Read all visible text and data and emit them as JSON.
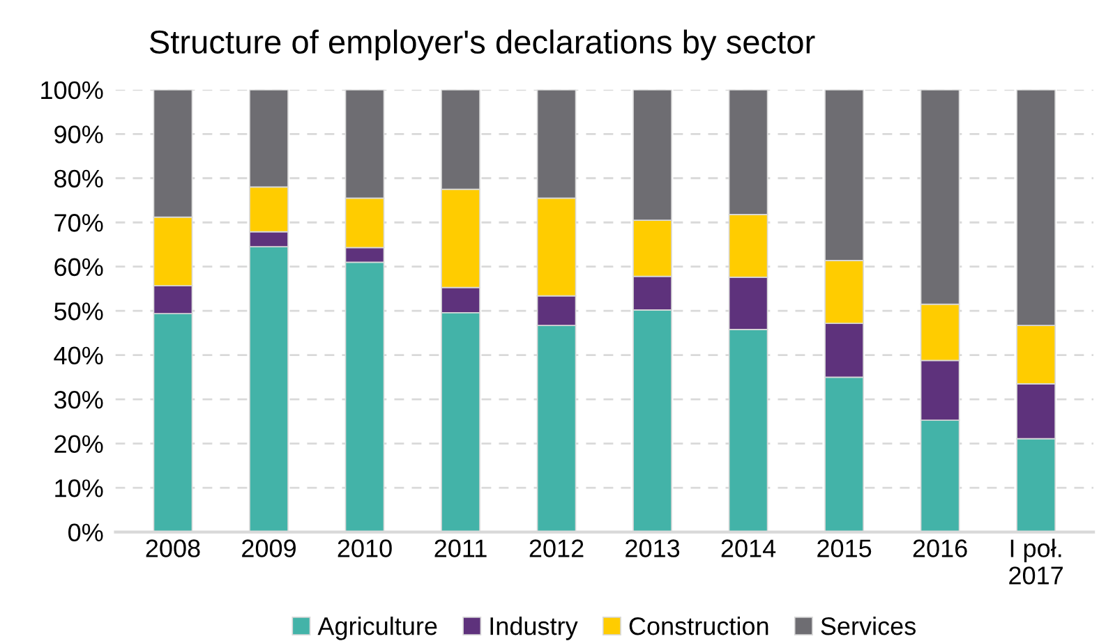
{
  "chart_data": {
    "type": "bar",
    "title": "Structure of employer's declarations by sector",
    "stacked": true,
    "categories": [
      "2008",
      "2009",
      "2010",
      "2011",
      "2012",
      "2013",
      "2014",
      "2015",
      "2016",
      "I poł.\n2017"
    ],
    "series": [
      {
        "name": "Agriculture",
        "color": "#43b3a8",
        "values": [
          49.4,
          64.5,
          61.0,
          49.6,
          46.7,
          50.2,
          45.8,
          35.0,
          25.3,
          21.1
        ]
      },
      {
        "name": "Industry",
        "color": "#5e327c",
        "values": [
          6.3,
          3.4,
          3.3,
          5.7,
          6.7,
          7.6,
          11.8,
          12.2,
          13.5,
          12.4
        ]
      },
      {
        "name": "Construction",
        "color": "#ffcc00",
        "values": [
          15.5,
          10.1,
          11.2,
          22.2,
          22.1,
          12.7,
          14.2,
          14.2,
          12.7,
          13.2
        ]
      },
      {
        "name": "Services",
        "color": "#6e6d72",
        "values": [
          28.8,
          22.0,
          24.5,
          22.5,
          24.5,
          29.5,
          28.2,
          38.6,
          48.5,
          53.3
        ]
      }
    ],
    "ylim": [
      0,
      100
    ],
    "yticks": [
      {
        "value": 0,
        "label": "0%"
      },
      {
        "value": 10,
        "label": "10%"
      },
      {
        "value": 20,
        "label": "20%"
      },
      {
        "value": 30,
        "label": "30%"
      },
      {
        "value": 40,
        "label": "40%"
      },
      {
        "value": 50,
        "label": "50%"
      },
      {
        "value": 60,
        "label": "60%"
      },
      {
        "value": 70,
        "label": "70%"
      },
      {
        "value": 80,
        "label": "80%"
      },
      {
        "value": 90,
        "label": "90%"
      },
      {
        "value": 100,
        "label": "100%"
      }
    ],
    "grid": "y",
    "legend": "bottom"
  }
}
